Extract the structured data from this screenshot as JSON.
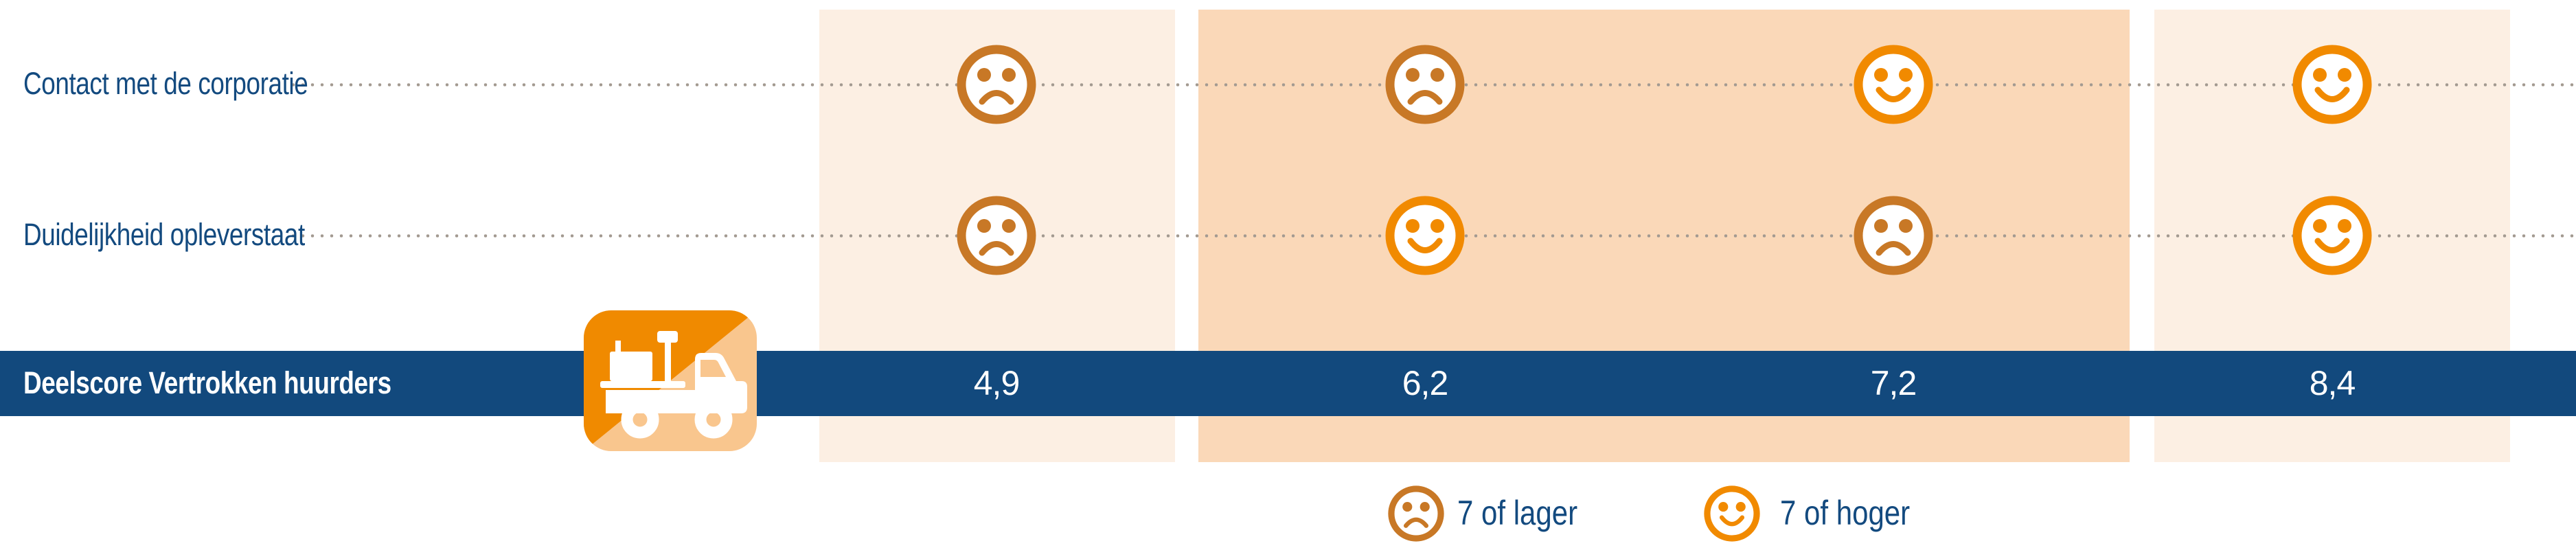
{
  "colors": {
    "text_blue": "#134A7F",
    "bar_blue": "#12497D",
    "band_light": "#FCEFE3",
    "band_dark": "#FAD8B8",
    "sad_orange": "#C87826",
    "happy_orange": "#F18A00",
    "icon_dark_orange": "#F08A00",
    "icon_light_orange": "#F9C68E",
    "dot_gray": "#A39A91",
    "white": "#FFFFFF"
  },
  "rows": [
    {
      "label": "Contact met de corporatie",
      "faces": [
        "sad",
        "sad",
        "happy",
        "happy"
      ]
    },
    {
      "label": "Duidelijkheid opleverstaat",
      "faces": [
        "sad",
        "happy",
        "sad",
        "happy"
      ]
    }
  ],
  "score_row": {
    "label": "Deelscore Vertrokken huurders",
    "icon": "moving-truck-icon",
    "scores": [
      "4,9",
      "6,2",
      "7,2",
      "8,4"
    ]
  },
  "legend": [
    {
      "face": "sad",
      "label": "7 of lager"
    },
    {
      "face": "happy",
      "label": "7 of hoger"
    }
  ],
  "chart_data": {
    "type": "table",
    "title": "Deelscore Vertrokken huurders",
    "columns": 4,
    "rows": [
      {
        "label": "Contact met de corporatie",
        "ratings": [
          "7 of lager",
          "7 of lager",
          "7 of hoger",
          "7 of hoger"
        ]
      },
      {
        "label": "Duidelijkheid opleverstaat",
        "ratings": [
          "7 of lager",
          "7 of hoger",
          "7 of lager",
          "7 of hoger"
        ]
      }
    ],
    "score_values": [
      4.9,
      6.2,
      7.2,
      8.4
    ],
    "score_display": [
      "4,9",
      "6,2",
      "7,2",
      "8,4"
    ],
    "legend": [
      {
        "symbol": "sad-face",
        "label": "7 of lager"
      },
      {
        "symbol": "happy-face",
        "label": "7 of hoger"
      }
    ],
    "legend_position": "bottom"
  }
}
